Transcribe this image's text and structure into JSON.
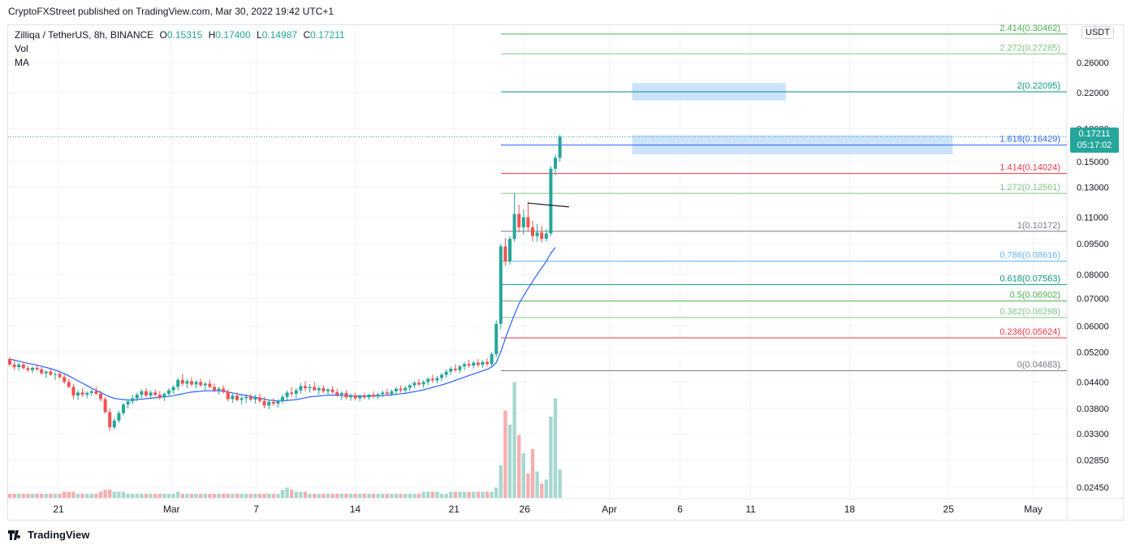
{
  "header": {
    "published": "CryptoFXStreet published on TradingView.com, Mar 30, 2022 19:42 UTC+1"
  },
  "legend": {
    "symbol": "Zilliqa / TetherUS, 8h, BINANCE",
    "o_label": "O",
    "o_value": "0.15315",
    "h_label": "H",
    "h_value": "0.17400",
    "l_label": "L",
    "l_value": "0.14987",
    "c_label": "C",
    "c_value": "0.17211",
    "vol": "Vol",
    "ma": "MA"
  },
  "unit": "USDT",
  "price_tag": {
    "price": "0.17211",
    "countdown": "05:17:02"
  },
  "brand": "TradingView",
  "colors": {
    "up": "#26a69a",
    "down": "#ef5350",
    "ma": "#2962ff",
    "box": "#bbd9fb"
  },
  "chart_data": {
    "type": "candlestick",
    "title": "Zilliqa / TetherUS, 8h, BINANCE",
    "y_scale": "log",
    "ylim": [
      0.023,
      0.32
    ],
    "price_ticks": [
      "0.26000",
      "0.22000",
      "0.18000",
      "0.15000",
      "0.13000",
      "0.11000",
      "0.09500",
      "0.08000",
      "0.07000",
      "0.06000",
      "0.05200",
      "0.04400",
      "0.03800",
      "0.03300",
      "0.02850",
      "0.02450"
    ],
    "date_ticks": [
      {
        "label": "21",
        "day": 0
      },
      {
        "label": "Mar",
        "day": 8
      },
      {
        "label": "7",
        "day": 14
      },
      {
        "label": "14",
        "day": 21
      },
      {
        "label": "21",
        "day": 28
      },
      {
        "label": "26",
        "day": 33
      },
      {
        "label": "Apr",
        "day": 39
      },
      {
        "label": "6",
        "day": 44
      },
      {
        "label": "11",
        "day": 49
      },
      {
        "label": "18",
        "day": 56
      },
      {
        "label": "25",
        "day": 63
      },
      {
        "label": "May",
        "day": 69
      }
    ],
    "candles": [
      [
        0.05,
        0.0505,
        0.048,
        0.0485
      ],
      [
        0.0485,
        0.0495,
        0.047,
        0.0478
      ],
      [
        0.0478,
        0.049,
        0.0468,
        0.0485
      ],
      [
        0.0485,
        0.0492,
        0.0472,
        0.0475
      ],
      [
        0.0475,
        0.0482,
        0.0465,
        0.047
      ],
      [
        0.047,
        0.048,
        0.0462,
        0.0476
      ],
      [
        0.0476,
        0.0485,
        0.0468,
        0.0472
      ],
      [
        0.0472,
        0.0478,
        0.0458,
        0.0462
      ],
      [
        0.0462,
        0.047,
        0.045,
        0.0466
      ],
      [
        0.0466,
        0.0472,
        0.0455,
        0.0458
      ],
      [
        0.0458,
        0.0465,
        0.0445,
        0.046
      ],
      [
        0.046,
        0.0468,
        0.0448,
        0.0452
      ],
      [
        0.0452,
        0.046,
        0.0435,
        0.044
      ],
      [
        0.044,
        0.0448,
        0.0425,
        0.0428
      ],
      [
        0.0428,
        0.0436,
        0.04,
        0.0408
      ],
      [
        0.0408,
        0.042,
        0.0398,
        0.0415
      ],
      [
        0.0415,
        0.0425,
        0.0405,
        0.041
      ],
      [
        0.041,
        0.0418,
        0.0402,
        0.0414
      ],
      [
        0.0414,
        0.0422,
        0.0408,
        0.0418
      ],
      [
        0.0418,
        0.0428,
        0.041,
        0.0412
      ],
      [
        0.0412,
        0.042,
        0.0395,
        0.04
      ],
      [
        0.04,
        0.0405,
        0.037,
        0.0372
      ],
      [
        0.0372,
        0.038,
        0.0335,
        0.0342
      ],
      [
        0.0342,
        0.036,
        0.0338,
        0.0355
      ],
      [
        0.0355,
        0.0375,
        0.035,
        0.037
      ],
      [
        0.037,
        0.0392,
        0.0365,
        0.0388
      ],
      [
        0.0388,
        0.04,
        0.038,
        0.0395
      ],
      [
        0.0395,
        0.041,
        0.0388,
        0.0402
      ],
      [
        0.0402,
        0.0415,
        0.0395,
        0.041
      ],
      [
        0.041,
        0.0422,
        0.0402,
        0.0418
      ],
      [
        0.0418,
        0.0425,
        0.0405,
        0.0408
      ],
      [
        0.0408,
        0.042,
        0.04,
        0.0415
      ],
      [
        0.0415,
        0.0422,
        0.0405,
        0.041
      ],
      [
        0.041,
        0.0418,
        0.0398,
        0.0404
      ],
      [
        0.0404,
        0.0415,
        0.0396,
        0.0412
      ],
      [
        0.0412,
        0.0425,
        0.0405,
        0.042
      ],
      [
        0.042,
        0.0432,
        0.0412,
        0.0428
      ],
      [
        0.0428,
        0.045,
        0.042,
        0.0445
      ],
      [
        0.0445,
        0.046,
        0.043,
        0.0436
      ],
      [
        0.0436,
        0.0448,
        0.0425,
        0.0442
      ],
      [
        0.0442,
        0.0452,
        0.043,
        0.0434
      ],
      [
        0.0434,
        0.0445,
        0.0425,
        0.044
      ],
      [
        0.044,
        0.0448,
        0.0428,
        0.0432
      ],
      [
        0.0432,
        0.044,
        0.042,
        0.0436
      ],
      [
        0.0436,
        0.0445,
        0.0425,
        0.0428
      ],
      [
        0.0428,
        0.0436,
        0.0415,
        0.042
      ],
      [
        0.042,
        0.0428,
        0.041,
        0.0424
      ],
      [
        0.0424,
        0.0432,
        0.0412,
        0.0416
      ],
      [
        0.0416,
        0.0422,
        0.0395,
        0.04
      ],
      [
        0.04,
        0.0412,
        0.0392,
        0.0408
      ],
      [
        0.0408,
        0.0415,
        0.0395,
        0.0398
      ],
      [
        0.0398,
        0.0408,
        0.0388,
        0.0402
      ],
      [
        0.0402,
        0.0412,
        0.0392,
        0.0405
      ],
      [
        0.0405,
        0.0412,
        0.0395,
        0.0399
      ],
      [
        0.0399,
        0.041,
        0.039,
        0.0404
      ],
      [
        0.0404,
        0.0412,
        0.0392,
        0.0396
      ],
      [
        0.0396,
        0.0405,
        0.038,
        0.0386
      ],
      [
        0.0386,
        0.0398,
        0.0378,
        0.0394
      ],
      [
        0.0394,
        0.0402,
        0.0385,
        0.039
      ],
      [
        0.039,
        0.04,
        0.0382,
        0.0396
      ],
      [
        0.0396,
        0.041,
        0.039,
        0.0405
      ],
      [
        0.0405,
        0.042,
        0.0398,
        0.0415
      ],
      [
        0.0415,
        0.0428,
        0.0405,
        0.0412
      ],
      [
        0.0412,
        0.0425,
        0.0402,
        0.042
      ],
      [
        0.042,
        0.0438,
        0.0412,
        0.043
      ],
      [
        0.043,
        0.0442,
        0.0418,
        0.0425
      ],
      [
        0.0425,
        0.0435,
        0.0415,
        0.0428
      ],
      [
        0.0428,
        0.044,
        0.042,
        0.042
      ],
      [
        0.042,
        0.043,
        0.041,
        0.0425
      ],
      [
        0.0425,
        0.0432,
        0.0414,
        0.0418
      ],
      [
        0.0418,
        0.0426,
        0.0408,
        0.0422
      ],
      [
        0.0422,
        0.043,
        0.0412,
        0.0416
      ],
      [
        0.0416,
        0.0424,
        0.0405,
        0.041
      ],
      [
        0.041,
        0.0418,
        0.0398,
        0.0414
      ],
      [
        0.0414,
        0.042,
        0.04,
        0.0404
      ],
      [
        0.0404,
        0.0412,
        0.0396,
        0.0408
      ],
      [
        0.0408,
        0.0415,
        0.0398,
        0.0402
      ],
      [
        0.0402,
        0.041,
        0.0395,
        0.0407
      ],
      [
        0.0407,
        0.0415,
        0.04,
        0.0404
      ],
      [
        0.0404,
        0.0412,
        0.0398,
        0.041
      ],
      [
        0.041,
        0.0418,
        0.0402,
        0.0406
      ],
      [
        0.0406,
        0.0414,
        0.04,
        0.0411
      ],
      [
        0.0411,
        0.042,
        0.0404,
        0.0415
      ],
      [
        0.0415,
        0.0424,
        0.0408,
        0.0412
      ],
      [
        0.0412,
        0.0422,
        0.0406,
        0.0418
      ],
      [
        0.0418,
        0.0428,
        0.041,
        0.0424
      ],
      [
        0.0424,
        0.0432,
        0.0415,
        0.042
      ],
      [
        0.042,
        0.043,
        0.0412,
        0.0426
      ],
      [
        0.0426,
        0.0436,
        0.0418,
        0.0432
      ],
      [
        0.0432,
        0.0442,
        0.0424,
        0.0438
      ],
      [
        0.0438,
        0.0448,
        0.043,
        0.0434
      ],
      [
        0.0434,
        0.0444,
        0.0426,
        0.044
      ],
      [
        0.044,
        0.0452,
        0.0432,
        0.0448
      ],
      [
        0.0448,
        0.0458,
        0.0438,
        0.0444
      ],
      [
        0.0444,
        0.0455,
        0.0436,
        0.045
      ],
      [
        0.045,
        0.0462,
        0.0442,
        0.0458
      ],
      [
        0.0458,
        0.0472,
        0.045,
        0.0466
      ],
      [
        0.0466,
        0.048,
        0.0458,
        0.0474
      ],
      [
        0.0474,
        0.0486,
        0.0465,
        0.047
      ],
      [
        0.047,
        0.0484,
        0.0462,
        0.048
      ],
      [
        0.048,
        0.0492,
        0.047,
        0.0486
      ],
      [
        0.0486,
        0.0498,
        0.0476,
        0.0482
      ],
      [
        0.0482,
        0.0494,
        0.0474,
        0.049
      ],
      [
        0.049,
        0.05,
        0.0478,
        0.0484
      ],
      [
        0.0484,
        0.0496,
        0.0476,
        0.0492
      ],
      [
        0.0492,
        0.0502,
        0.048,
        0.0486
      ],
      [
        0.0486,
        0.052,
        0.0478,
        0.0514
      ],
      [
        0.0514,
        0.062,
        0.0505,
        0.0608
      ],
      [
        0.0608,
        0.095,
        0.059,
        0.0935
      ],
      [
        0.0935,
        0.098,
        0.084,
        0.086
      ],
      [
        0.086,
        0.099,
        0.0845,
        0.0975
      ],
      [
        0.0975,
        0.126,
        0.096,
        0.112
      ],
      [
        0.112,
        0.118,
        0.101,
        0.104
      ],
      [
        0.104,
        0.115,
        0.1,
        0.11
      ],
      [
        0.11,
        0.12,
        0.102,
        0.104
      ],
      [
        0.104,
        0.108,
        0.096,
        0.099
      ],
      [
        0.099,
        0.106,
        0.096,
        0.101
      ],
      [
        0.101,
        0.105,
        0.0955,
        0.0975
      ],
      [
        0.0975,
        0.103,
        0.096,
        0.1005
      ],
      [
        0.1005,
        0.146,
        0.099,
        0.144
      ],
      [
        0.144,
        0.156,
        0.139,
        0.1531
      ],
      [
        0.1531,
        0.174,
        0.1499,
        0.1721
      ]
    ],
    "volumes": [
      2,
      2,
      2,
      2,
      2,
      2,
      2,
      2,
      2,
      2,
      2,
      2,
      3,
      3,
      3,
      2,
      2,
      2,
      2,
      2,
      3,
      4,
      4,
      3,
      3,
      3,
      2,
      2,
      2,
      2,
      2,
      2,
      2,
      2,
      2,
      2,
      2,
      3,
      2,
      2,
      2,
      2,
      2,
      2,
      2,
      2,
      2,
      2,
      2,
      2,
      2,
      2,
      2,
      2,
      2,
      2,
      2,
      2,
      2,
      2,
      4,
      5,
      4,
      3,
      3,
      3,
      2,
      2,
      2,
      2,
      2,
      2,
      2,
      2,
      2,
      2,
      2,
      2,
      2,
      2,
      2,
      2,
      2,
      2,
      2,
      2,
      2,
      2,
      2,
      2,
      2,
      3,
      3,
      3,
      3,
      2,
      2,
      3,
      3,
      3,
      3,
      3,
      3,
      3,
      3,
      3,
      3,
      5,
      16,
      43,
      36,
      57,
      31,
      22,
      12,
      24,
      13,
      7,
      9,
      40,
      49,
      14
    ],
    "volume_scale_max": 60,
    "ma": {
      "start_index": 0,
      "values": [
        0.05,
        0.0497,
        0.0494,
        0.0491,
        0.0488,
        0.0486,
        0.0483,
        0.048,
        0.0477,
        0.0474,
        0.047,
        0.0466,
        0.0461,
        0.0455,
        0.0449,
        0.0443,
        0.0437,
        0.0431,
        0.0425,
        0.042,
        0.0415,
        0.041,
        0.0405,
        0.0402,
        0.04,
        0.0399,
        0.0398,
        0.0398,
        0.0399,
        0.04,
        0.0401,
        0.0402,
        0.0403,
        0.0404,
        0.0405,
        0.0406,
        0.0408,
        0.041,
        0.0412,
        0.0414,
        0.0416,
        0.0417,
        0.0418,
        0.0419,
        0.0419,
        0.0419,
        0.0419,
        0.0418,
        0.0416,
        0.0414,
        0.0412,
        0.041,
        0.0408,
        0.0406,
        0.0404,
        0.0402,
        0.04,
        0.0398,
        0.0397,
        0.0396,
        0.0396,
        0.0397,
        0.0398,
        0.0399,
        0.0401,
        0.0403,
        0.0405,
        0.0406,
        0.0407,
        0.0408,
        0.0409,
        0.0409,
        0.0409,
        0.0408,
        0.0408,
        0.0408,
        0.0407,
        0.0407,
        0.0407,
        0.0407,
        0.0407,
        0.0407,
        0.0408,
        0.0409,
        0.041,
        0.0411,
        0.0412,
        0.0413,
        0.0415,
        0.0417,
        0.0419,
        0.0421,
        0.0424,
        0.0427,
        0.043,
        0.0433,
        0.0436,
        0.044,
        0.0444,
        0.0448,
        0.0452,
        0.0456,
        0.046,
        0.0464,
        0.0468,
        0.0472,
        0.0478,
        0.049,
        0.052,
        0.056,
        0.06,
        0.064,
        0.068,
        0.071,
        0.074,
        0.077,
        0.08,
        0.083,
        0.086,
        0.09,
        0.093
      ]
    },
    "fib_levels": [
      {
        "label": "0(0.04683)",
        "value": 0.04683,
        "color": "#787b86"
      },
      {
        "label": "0.236(0.05624)",
        "value": 0.05624,
        "color": "#f23645"
      },
      {
        "label": "0.382(0.06298)",
        "value": 0.06298,
        "color": "#81c784"
      },
      {
        "label": "0.5(0.06902)",
        "value": 0.06902,
        "color": "#4caf50"
      },
      {
        "label": "0.618(0.07563)",
        "value": 0.07563,
        "color": "#089981"
      },
      {
        "label": "0.786(0.08616)",
        "value": 0.08616,
        "color": "#64b5f6"
      },
      {
        "label": "1(0.10172)",
        "value": 0.10172,
        "color": "#787b86"
      },
      {
        "label": "1.272(0.12561)",
        "value": 0.12561,
        "color": "#81c784"
      },
      {
        "label": "1.414(0.14024)",
        "value": 0.14024,
        "color": "#f23645"
      },
      {
        "label": "1.618(0.16429)",
        "value": 0.16429,
        "color": "#2962ff"
      },
      {
        "label": "2(0.22095)",
        "value": 0.22095,
        "color": "#089981"
      },
      {
        "label": "2.272(0.27285)",
        "value": 0.27285,
        "color": "#81c784"
      },
      {
        "label": "2.414(0.30462)",
        "value": 0.30462,
        "color": "#4caf50"
      }
    ],
    "zones": [
      {
        "from_day": 40.6,
        "to_day": 51.5,
        "low": 0.2105,
        "high": 0.232
      },
      {
        "from_day": 40.6,
        "to_day": 63.3,
        "low": 0.156,
        "high": 0.1735
      }
    ],
    "trendline": {
      "from_index": 114,
      "from_price": 0.119,
      "to_index": 123,
      "to_price": 0.1165
    },
    "last_price": 0.17211
  }
}
